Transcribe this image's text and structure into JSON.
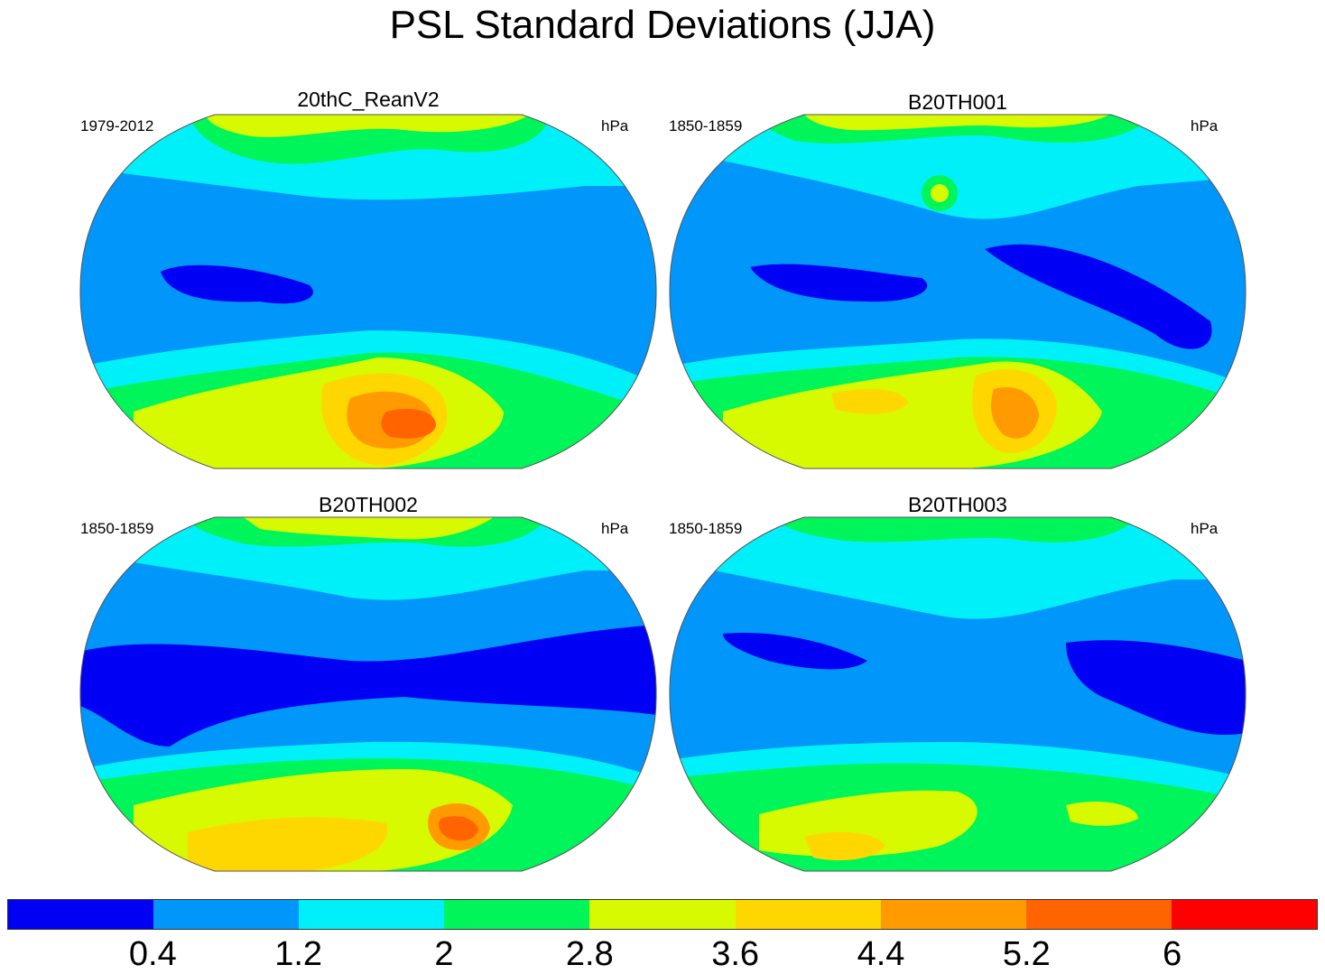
{
  "title": "PSL Standard Deviations (JJA)",
  "panels": [
    {
      "title": "20thC_ReanV2",
      "period": "1979-2012",
      "units": "hPa"
    },
    {
      "title": "B20TH001",
      "period": "1850-1859",
      "units": "hPa"
    },
    {
      "title": "B20TH002",
      "period": "1850-1859",
      "units": "hPa"
    },
    {
      "title": "B20TH003",
      "period": "1850-1859",
      "units": "hPa"
    }
  ],
  "colorbar": {
    "colors": [
      "#0000f5",
      "#0096fa",
      "#00f0fa",
      "#00f55a",
      "#d7fa00",
      "#ffd700",
      "#ff9b00",
      "#ff6400",
      "#ff0000"
    ],
    "labels": [
      "0.4",
      "1.2",
      "2",
      "2.8",
      "3.6",
      "4.4",
      "5.2",
      "6"
    ]
  }
}
